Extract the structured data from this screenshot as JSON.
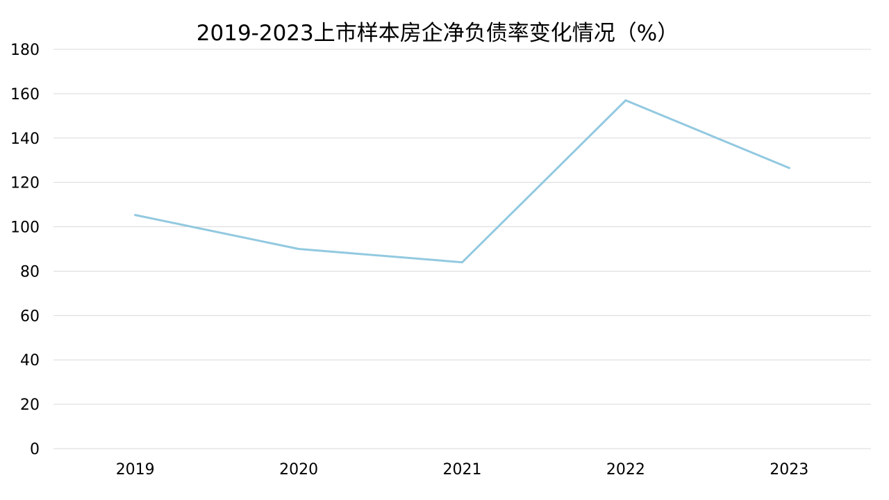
{
  "chart_data": {
    "type": "line",
    "title": "2019-2023上市样本房企净负债率变化情况（%）",
    "xlabel": "",
    "ylabel": "",
    "categories": [
      "2019",
      "2020",
      "2021",
      "2022",
      "2023"
    ],
    "series": [
      {
        "values": [
          105.3,
          90.0,
          84.0,
          157.0,
          126.5
        ]
      }
    ],
    "ylim": [
      0,
      180
    ],
    "yticks": [
      "0",
      "20",
      "40",
      "60",
      "80",
      "100",
      "120",
      "140",
      "160",
      "180"
    ],
    "grid": true,
    "legend": "none",
    "colors": {
      "line": "#92c9e0",
      "grid": "#d9d9d9"
    }
  }
}
